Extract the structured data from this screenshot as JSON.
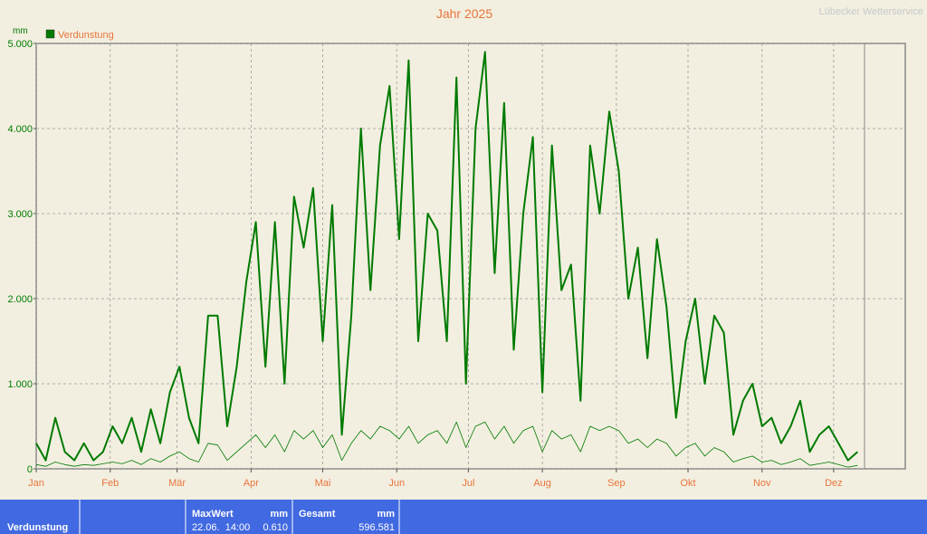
{
  "chart_data": {
    "type": "line",
    "title": "Jahr 2025",
    "credit": "Lübecker Wetterservice",
    "y_label": "mm",
    "x": [
      1,
      5,
      9,
      13,
      17,
      21,
      25,
      29,
      33,
      37,
      41,
      45,
      49,
      53,
      57,
      61,
      65,
      69,
      73,
      77,
      81,
      85,
      89,
      93,
      97,
      101,
      105,
      109,
      113,
      117,
      121,
      125,
      129,
      133,
      137,
      141,
      145,
      149,
      153,
      157,
      161,
      165,
      169,
      173,
      177,
      181,
      185,
      189,
      193,
      197,
      201,
      205,
      209,
      213,
      217,
      221,
      225,
      229,
      233,
      237,
      241,
      245,
      249,
      253,
      257,
      261,
      265,
      269,
      273,
      277,
      281,
      285,
      289,
      293,
      297,
      301,
      305,
      309,
      313,
      317,
      321,
      325,
      329,
      333,
      337,
      341,
      345
    ],
    "series": [
      {
        "name": "Verdunstung",
        "color": "#007a00",
        "width": 2,
        "values": [
          0.3,
          0.1,
          0.6,
          0.2,
          0.1,
          0.3,
          0.1,
          0.2,
          0.5,
          0.3,
          0.6,
          0.2,
          0.7,
          0.3,
          0.9,
          1.2,
          0.6,
          0.3,
          1.8,
          1.8,
          0.5,
          1.2,
          2.2,
          2.9,
          1.2,
          2.9,
          1.0,
          3.2,
          2.6,
          3.3,
          1.5,
          3.1,
          0.4,
          1.8,
          4.0,
          2.1,
          3.8,
          4.5,
          2.7,
          4.8,
          1.5,
          3.0,
          2.8,
          1.5,
          4.6,
          1.0,
          4.0,
          4.9,
          2.3,
          4.3,
          1.4,
          3.0,
          3.9,
          0.9,
          3.8,
          2.1,
          2.4,
          0.8,
          3.8,
          3.0,
          4.2,
          3.5,
          2.0,
          2.6,
          1.3,
          2.7,
          1.9,
          0.6,
          1.5,
          2.0,
          1.0,
          1.8,
          1.6,
          0.4,
          0.8,
          1.0,
          0.5,
          0.6,
          0.3,
          0.5,
          0.8,
          0.2,
          0.4,
          0.5,
          0.3,
          0.1,
          0.2
        ]
      },
      {
        "color": "#007a00",
        "width": 0.8,
        "values": [
          0.05,
          0.03,
          0.08,
          0.05,
          0.03,
          0.05,
          0.04,
          0.06,
          0.08,
          0.06,
          0.1,
          0.05,
          0.12,
          0.08,
          0.15,
          0.2,
          0.12,
          0.08,
          0.3,
          0.28,
          0.1,
          0.2,
          0.3,
          0.4,
          0.25,
          0.4,
          0.2,
          0.45,
          0.35,
          0.45,
          0.25,
          0.4,
          0.1,
          0.3,
          0.45,
          0.35,
          0.5,
          0.45,
          0.35,
          0.5,
          0.3,
          0.4,
          0.45,
          0.3,
          0.55,
          0.25,
          0.5,
          0.55,
          0.35,
          0.5,
          0.3,
          0.45,
          0.5,
          0.2,
          0.45,
          0.35,
          0.4,
          0.2,
          0.5,
          0.45,
          0.5,
          0.45,
          0.3,
          0.35,
          0.25,
          0.35,
          0.3,
          0.15,
          0.25,
          0.3,
          0.15,
          0.25,
          0.2,
          0.08,
          0.12,
          0.15,
          0.08,
          0.1,
          0.05,
          0.08,
          0.12,
          0.04,
          0.06,
          0.08,
          0.05,
          0.02,
          0.04
        ]
      }
    ],
    "xlim": [
      1,
      365
    ],
    "xticks": [
      {
        "value": 1,
        "label": "Jan"
      },
      {
        "value": 32,
        "label": "Feb"
      },
      {
        "value": 60,
        "label": "Mär"
      },
      {
        "value": 91,
        "label": "Apr"
      },
      {
        "value": 121,
        "label": "Mai"
      },
      {
        "value": 152,
        "label": "Jun"
      },
      {
        "value": 182,
        "label": "Jul"
      },
      {
        "value": 213,
        "label": "Aug"
      },
      {
        "value": 244,
        "label": "Sep"
      },
      {
        "value": 274,
        "label": "Okt"
      },
      {
        "value": 305,
        "label": "Nov"
      },
      {
        "value": 335,
        "label": "Dez"
      }
    ],
    "ylim": [
      0,
      5
    ],
    "yticks": [
      0,
      {
        "value": 1,
        "label": "1.000"
      },
      {
        "value": 2,
        "label": "2.000"
      },
      {
        "value": 3,
        "label": "3.000"
      },
      {
        "value": 4,
        "label": "4.000"
      },
      {
        "value": 5,
        "label": "5.000"
      }
    ],
    "grid": true,
    "legend": "top-left"
  },
  "footer": {
    "name": "Verdunstung",
    "max_label": "MaxWert",
    "max_unit": "mm",
    "max_time": "22.06.  14:00",
    "max_value": "0.610",
    "total_label": "Gesamt",
    "total_unit": "mm",
    "total_value": "596.581"
  }
}
